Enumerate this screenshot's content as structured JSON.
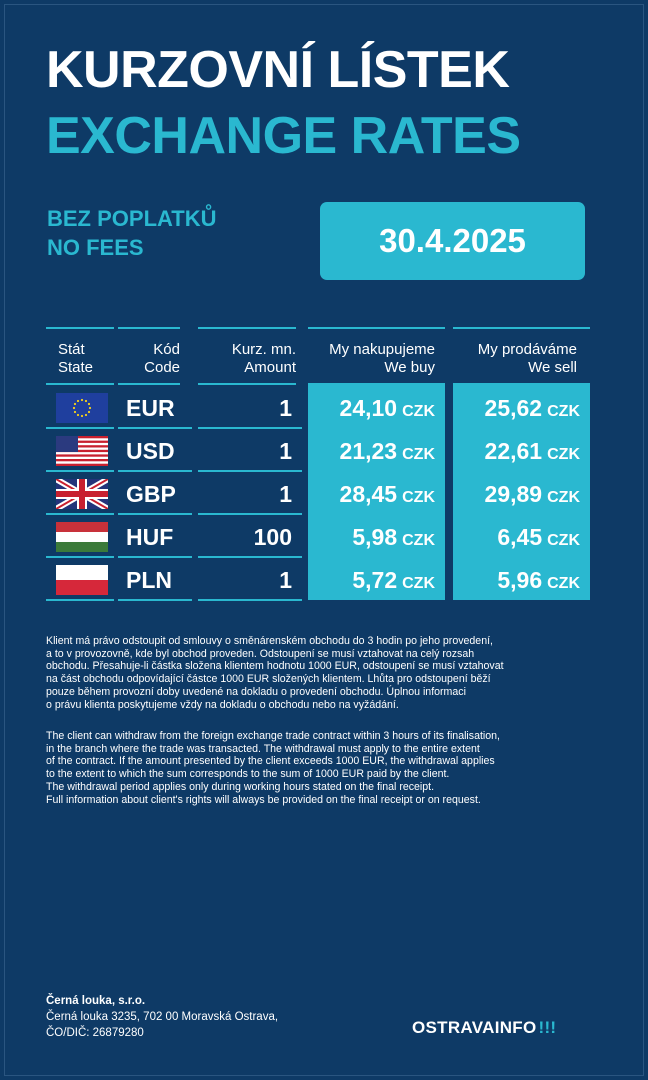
{
  "title": {
    "line1": "KURZOVNÍ LÍSTEK",
    "line2": "EXCHANGE RATES"
  },
  "fees": {
    "cz": "BEZ POPLATKŮ",
    "en": "NO FEES"
  },
  "date": "30.4.2025",
  "headers": {
    "state": {
      "cz": "Stát",
      "en": "State"
    },
    "code": {
      "cz": "Kód",
      "en": "Code"
    },
    "amount": {
      "cz": "Kurz. mn.",
      "en": "Amount"
    },
    "buy": {
      "cz": "My nakupujeme",
      "en": "We buy"
    },
    "sell": {
      "cz": "My prodáváme",
      "en": "We sell"
    }
  },
  "rows": [
    {
      "flag": "eu-flag-icon",
      "code": "EUR",
      "amount": "1",
      "buy": "24,10",
      "sell": "25,62",
      "unit": "CZK"
    },
    {
      "flag": "us-flag-icon",
      "code": "USD",
      "amount": "1",
      "buy": "21,23",
      "sell": "22,61",
      "unit": "CZK"
    },
    {
      "flag": "uk-flag-icon",
      "code": "GBP",
      "amount": "1",
      "buy": "28,45",
      "sell": "29,89",
      "unit": "CZK"
    },
    {
      "flag": "hu-flag-icon",
      "code": "HUF",
      "amount": "100",
      "buy": "5,98",
      "sell": "6,45",
      "unit": "CZK"
    },
    {
      "flag": "pl-flag-icon",
      "code": "PLN",
      "amount": "1",
      "buy": "5,72",
      "sell": "5,96",
      "unit": "CZK"
    }
  ],
  "notes": {
    "cz": "Klient má právo odstoupit od smlouvy o směnárenském obchodu do 3 hodin po jeho provedení,\na to v provozovně, kde byl obchod proveden. Odstoupení se musí vztahovat na celý rozsah\nobchodu. Přesahuje-li částka složena klientem hodnotu 1000 EUR, odstoupení se musí vztahovat\nna část obchodu odpovídající částce 1000 EUR složených klientem. Lhůta pro odstoupení běží\npouze během provozní doby uvedené na dokladu o provedení obchodu. Úplnou informaci\no právu klienta poskytujeme vždy na dokladu o obchodu nebo na vyžádání.",
    "en": "The client can withdraw from the foreign exchange trade contract within 3 hours of its finalisation,\nin the branch where the trade was transacted. The withdrawal must apply to the entire extent\nof the contract. If the amount presented by the client exceeds 1000 EUR, the withdrawal applies\nto the extent to which the sum corresponds to the sum of 1000 EUR paid by the client.\nThe withdrawal period applies only during working hours stated on the final receipt.\nFull information about client's rights will always be provided on the final receipt or on request."
  },
  "company": {
    "name": "Černá louka, s.r.o.",
    "address": "Černá louka 3235, 702 00 Moravská Ostrava,",
    "ids": "ČO/DIČ: 26879280"
  },
  "logo": {
    "text": "OSTRAVAINFO",
    "mark": "!!!"
  },
  "colors": {
    "background": "#0e3a66",
    "accent": "#2ab8d0",
    "text": "#ffffff"
  }
}
